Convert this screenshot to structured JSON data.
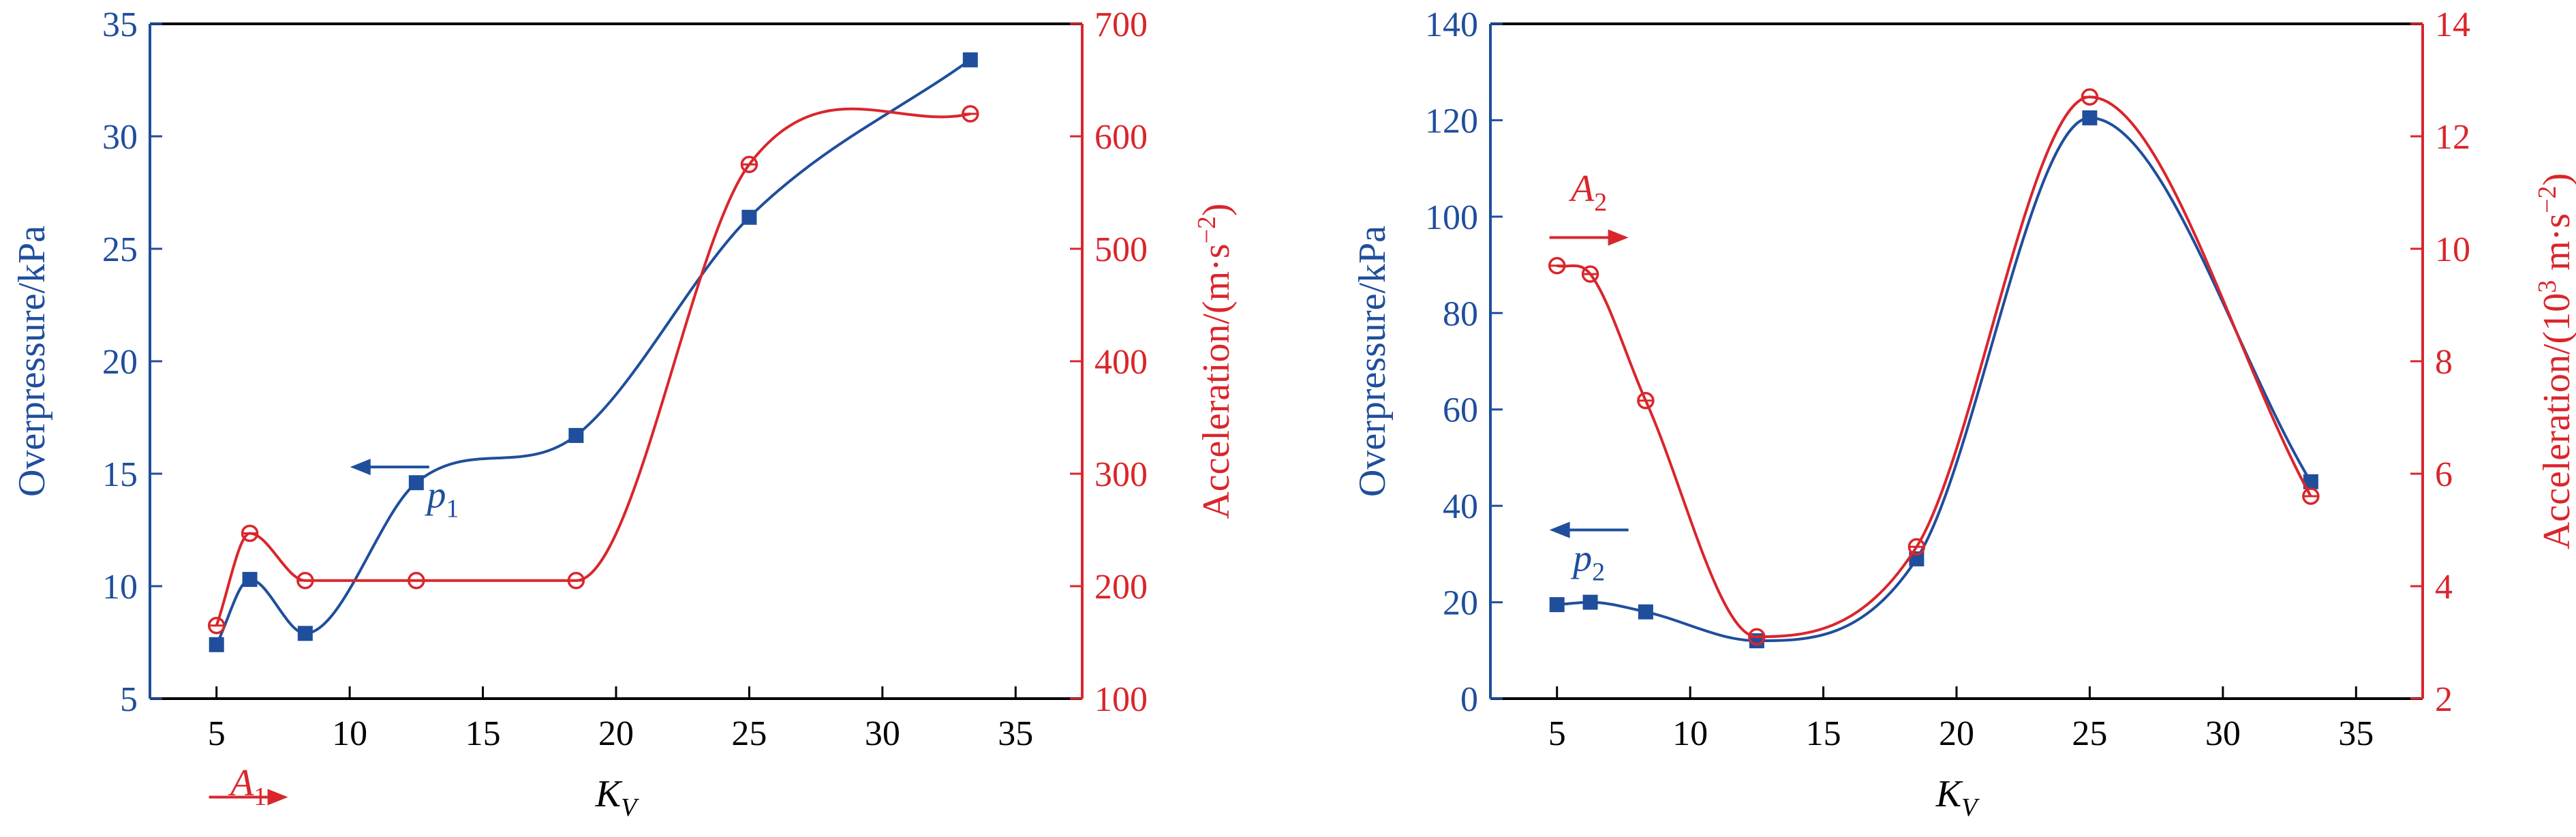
{
  "colors": {
    "blue": "#1f4e9c",
    "red": "#d9262c",
    "axis": "#000000"
  },
  "chart_data": [
    {
      "type": "line",
      "xlabel": "K",
      "xlabel_sub": "V",
      "xlim": [
        2.5,
        37.5
      ],
      "xticks": [
        5,
        10,
        15,
        20,
        25,
        30,
        35
      ],
      "ylabel_left": "Overpressure/kPa",
      "ylim_left": [
        5,
        35
      ],
      "yticks_left": [
        5,
        10,
        15,
        20,
        25,
        30,
        35
      ],
      "ylabel_right": {
        "main": "Acceleration/(m·s",
        "sup": "−2",
        "close": ")"
      },
      "ylim_right": [
        100,
        700
      ],
      "yticks_right": [
        100,
        200,
        300,
        400,
        500,
        600,
        700
      ],
      "x": [
        5,
        6.25,
        8.33,
        12.5,
        18.5,
        25,
        33.3
      ],
      "series": [
        {
          "name": "p",
          "sub": "1",
          "axis": "left",
          "marker": "square",
          "color": "blue",
          "values": [
            7.4,
            10.3,
            7.9,
            14.6,
            16.7,
            26.4,
            33.4
          ],
          "arrow": "left",
          "arrow_at": [
            11.5,
            15.3
          ],
          "label_at": [
            13.5,
            13.5
          ]
        },
        {
          "name": "A",
          "sub": "1",
          "axis": "right",
          "marker": "circle",
          "color": "red",
          "values": [
            165,
            247,
            205,
            205,
            205,
            575,
            620
          ],
          "arrow": "right",
          "arrow_at": [
            6.2,
            12.4
          ],
          "label_at": [
            6.2,
            14.0
          ]
        }
      ]
    },
    {
      "type": "line",
      "xlabel": "K",
      "xlabel_sub": "V",
      "xlim": [
        2.5,
        37.5
      ],
      "xticks": [
        5,
        10,
        15,
        20,
        25,
        30,
        35
      ],
      "ylabel_left": "Overpressure/kPa",
      "ylim_left": [
        0,
        140
      ],
      "yticks_left": [
        0,
        20,
        40,
        60,
        80,
        100,
        120,
        140
      ],
      "ylabel_right": {
        "main": "Acceleration/(10",
        "sup": "3",
        "close": " m·s",
        "sup2": "−2",
        "close2": ")"
      },
      "ylim_right": [
        2,
        14
      ],
      "yticks_right": [
        2,
        4,
        6,
        8,
        10,
        12,
        14
      ],
      "x": [
        5,
        6.25,
        8.33,
        12.5,
        18.5,
        25,
        33.3
      ],
      "series": [
        {
          "name": "p",
          "sub": "2",
          "axis": "left",
          "marker": "square",
          "color": "blue",
          "values": [
            19.5,
            20.0,
            18.0,
            12.0,
            29.0,
            120.5,
            45.0
          ],
          "arrow": "left",
          "arrow_at": [
            6.2,
            35
          ],
          "label_at": [
            6.2,
            26.5
          ]
        },
        {
          "name": "A",
          "sub": "2",
          "axis": "right",
          "marker": "circle",
          "color": "red",
          "values": [
            9.7,
            9.55,
            7.3,
            3.1,
            4.7,
            12.7,
            5.6
          ],
          "arrow": "right",
          "arrow_at": [
            6.2,
            10.2
          ],
          "label_at": [
            6.2,
            10.85
          ]
        }
      ]
    }
  ]
}
